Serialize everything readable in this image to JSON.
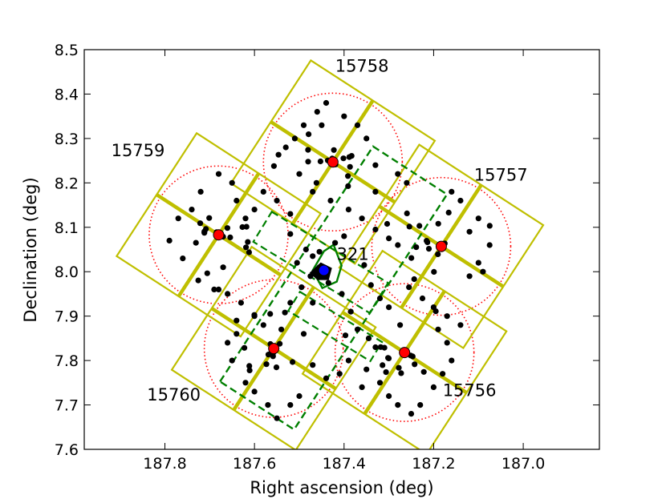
{
  "chart_data": {
    "type": "scatter",
    "xlabel": "Right ascension (deg)",
    "ylabel": "Declination (deg)",
    "xlim": [
      187.98,
      186.83
    ],
    "ylim": [
      7.6,
      8.5
    ],
    "x_ticks": [
      "187.8",
      "187.6",
      "187.4",
      "187.2",
      "187.0"
    ],
    "x_tick_values": [
      187.8,
      187.6,
      187.4,
      187.2,
      187.0
    ],
    "y_ticks": [
      "7.6",
      "7.7",
      "7.8",
      "7.9",
      "8.0",
      "8.1",
      "8.2",
      "8.3",
      "8.4",
      "8.5"
    ],
    "y_tick_values": [
      7.6,
      7.7,
      7.8,
      7.9,
      8.0,
      8.1,
      8.2,
      8.3,
      8.4,
      8.5
    ],
    "grid": false,
    "fields": [
      {
        "id": "15756",
        "center": [
          187.265,
          7.818
        ],
        "label_pos": [
          187.12,
          7.72
        ]
      },
      {
        "id": "15757",
        "center": [
          187.183,
          8.057
        ],
        "label_pos": [
          187.05,
          8.205
        ]
      },
      {
        "id": "15758",
        "center": [
          187.425,
          8.247
        ],
        "label_pos": [
          187.36,
          8.45
        ]
      },
      {
        "id": "15759",
        "center": [
          187.68,
          8.083
        ],
        "label_pos": [
          187.86,
          8.26
        ]
      },
      {
        "id": "15760",
        "center": [
          187.557,
          7.827
        ],
        "label_pos": [
          187.78,
          7.71
        ]
      }
    ],
    "fov_radius_deg": 0.155,
    "chip_half_size_deg": 0.165,
    "chip_rotation_deg": 33,
    "target": {
      "label": "321",
      "ra": 187.445,
      "dec": 8.003
    },
    "colors": {
      "points": "#000000",
      "field_centers": "#ff0000",
      "fov_circles": "#ff0000",
      "chips": "#bfbf00",
      "target_region": "#007f00",
      "target": "#0000ff"
    },
    "source_points": [
      [
        187.7255,
        7.9804
      ],
      [
        187.4791,
        8.3095
      ],
      [
        187.2138,
        8.0664
      ],
      [
        187.2434,
        7.9833
      ],
      [
        187.1952,
        7.911
      ],
      [
        187.7118,
        8.0875
      ],
      [
        187.3831,
        8.2609
      ],
      [
        187.0749,
        8.1034
      ],
      [
        187.1664,
        8.1331
      ],
      [
        187.3098,
        7.8289
      ],
      [
        187.5733,
        7.7917
      ],
      [
        187.4804,
        8.2743
      ],
      [
        187.3063,
        7.7739
      ],
      [
        187.7212,
        8.1091
      ],
      [
        187.7054,
        7.9965
      ],
      [
        187.6003,
        7.9026
      ],
      [
        187.3969,
        7.8566
      ],
      [
        187.3018,
        7.8059
      ],
      [
        187.5689,
        7.8133
      ],
      [
        187.4616,
        8.2001
      ],
      [
        187.2541,
        8.1016
      ],
      [
        187.6224,
        7.8286
      ],
      [
        187.2219,
        7.7744
      ],
      [
        187.2726,
        7.7715
      ],
      [
        187.6269,
        8.1005
      ],
      [
        187.5565,
        8.238
      ],
      [
        187.5149,
        7.7966
      ],
      [
        187.4526,
        8.2484
      ],
      [
        187.6149,
        8.0669
      ],
      [
        187.6178,
        8.1013
      ],
      [
        187.2596,
        8.1313
      ],
      [
        187.3883,
        8.2582
      ],
      [
        187.3142,
        7.7896
      ],
      [
        187.4227,
        8.274
      ],
      [
        187.2317,
        8.1032
      ],
      [
        187.6121,
        8.0436
      ],
      [
        187.7118,
        8.0904
      ],
      [
        187.6115,
        7.7877
      ],
      [
        187.6189,
        8.0549
      ],
      [
        187.2779,
        7.7836
      ],
      [
        187.5463,
        8.2633
      ],
      [
        187.4802,
        8.2478
      ],
      [
        187.1896,
        8.108
      ],
      [
        187.3002,
        7.8048
      ],
      [
        187.5547,
        7.8218
      ],
      [
        187.7011,
        8.1208
      ],
      [
        187.532,
        7.9081
      ],
      [
        187.2497,
        8.0309
      ],
      [
        187.1906,
        8.0394
      ],
      [
        187.7306,
        8.0651
      ],
      [
        187.6828,
        8.0774
      ],
      [
        187.5509,
        7.7847
      ],
      [
        187.6108,
        7.7779
      ],
      [
        187.3914,
        8.2154
      ],
      [
        187.3911,
        8.1926
      ],
      [
        187.2158,
        8.0696
      ],
      [
        187.2426,
        7.7916
      ],
      [
        187.1994,
        7.9997
      ],
      [
        187.2469,
        7.8093
      ],
      [
        187.5586,
        7.8096
      ],
      [
        187.3868,
        8.2361
      ],
      [
        187.4014,
        8.2553
      ],
      [
        187.3183,
        7.8303
      ],
      [
        187.2107,
        8.0516
      ],
      [
        187.7084,
        8.0962
      ],
      [
        187.5526,
        7.8293
      ],
      [
        187.6542,
        8.0773
      ],
      [
        187.4265,
        8.2549
      ],
      [
        187.6604,
        8.0983
      ],
      [
        187.3038,
        8.1077
      ],
      [
        187.2389,
        8.0553
      ],
      [
        187.5579,
        7.8175
      ],
      [
        187.2515,
        7.8113
      ],
      [
        187.5649,
        7.815
      ],
      [
        187.6844,
        8.0891
      ],
      [
        187.4287,
        8.2496
      ],
      [
        187.4364,
        8.2506
      ],
      [
        187.5645,
        7.8371
      ],
      [
        187.5437,
        7.8378
      ],
      [
        187.6699,
        8.0788
      ],
      [
        187.2657,
        7.8177
      ],
      [
        187.2694,
        7.8186
      ],
      [
        187.1752,
        8.0637
      ],
      [
        187.5596,
        7.8228
      ],
      [
        187.6792,
        8.0812
      ],
      [
        187.182,
        8.0505
      ],
      [
        187.4192,
        8.2415
      ],
      [
        187.1858,
        8.0531
      ],
      [
        187.2663,
        7.8207
      ],
      [
        187.4248,
        8.2505
      ],
      [
        187.6803,
        8.0797
      ],
      [
        187.5573,
        7.8285
      ],
      [
        187.1829,
        8.0585
      ],
      [
        187.4268,
        8.2494
      ],
      [
        187.6798,
        8.0834
      ],
      [
        187.2636,
        7.8168
      ],
      [
        187.18,
        8.062
      ],
      [
        187.4275,
        8.2428
      ],
      [
        187.6826,
        8.0839
      ],
      [
        187.5562,
        7.8249
      ],
      [
        187.565,
        7.905
      ],
      [
        187.52,
        7.93
      ],
      [
        187.495,
        7.965
      ],
      [
        187.475,
        7.99
      ],
      [
        187.455,
        8.01
      ],
      [
        187.435,
        7.975
      ],
      [
        187.405,
        7.95
      ],
      [
        187.385,
        7.91
      ],
      [
        187.37,
        7.87
      ],
      [
        187.345,
        7.85
      ],
      [
        187.33,
        7.83
      ],
      [
        187.505,
        8.02
      ],
      [
        187.485,
        8.05
      ],
      [
        187.52,
        8.085
      ],
      [
        187.47,
        8.035
      ],
      [
        187.58,
        7.88
      ],
      [
        187.54,
        7.87
      ],
      [
        187.49,
        7.86
      ],
      [
        187.47,
        7.93
      ],
      [
        187.455,
        8.045
      ],
      [
        187.42,
        8.065
      ],
      [
        187.4,
        8.08
      ],
      [
        187.355,
        8.015
      ],
      [
        187.34,
        7.97
      ],
      [
        187.32,
        7.94
      ],
      [
        187.3,
        7.92
      ],
      [
        187.275,
        7.88
      ],
      [
        187.36,
        8.12
      ],
      [
        187.33,
        8.095
      ],
      [
        187.3,
        8.075
      ],
      [
        187.28,
        8.06
      ],
      [
        187.52,
        8.13
      ],
      [
        187.55,
        8.16
      ],
      [
        187.58,
        8.18
      ],
      [
        187.6,
        8.14
      ],
      [
        187.62,
        8.12
      ],
      [
        187.39,
        7.8
      ],
      [
        187.41,
        7.77
      ],
      [
        187.44,
        7.76
      ],
      [
        187.47,
        7.79
      ],
      [
        187.6,
        7.9
      ],
      [
        187.63,
        7.93
      ],
      [
        187.66,
        7.95
      ],
      [
        187.68,
        7.96
      ],
      [
        187.64,
        7.86
      ],
      [
        187.255,
        7.965
      ],
      [
        187.225,
        7.94
      ],
      [
        187.2,
        7.92
      ],
      [
        187.17,
        7.9
      ],
      [
        187.14,
        7.88
      ],
      [
        187.12,
        7.99
      ],
      [
        187.1,
        8.02
      ],
      [
        187.12,
        8.09
      ],
      [
        187.14,
        8.16
      ],
      [
        187.16,
        8.18
      ],
      [
        187.1,
        8.12
      ],
      [
        187.075,
        8.06
      ],
      [
        187.09,
        8.0
      ],
      [
        187.26,
        8.2
      ],
      [
        187.28,
        8.22
      ],
      [
        187.33,
        8.24
      ],
      [
        187.35,
        8.3
      ],
      [
        187.37,
        8.33
      ],
      [
        187.4,
        8.35
      ],
      [
        187.44,
        8.38
      ],
      [
        187.46,
        8.36
      ],
      [
        187.49,
        8.33
      ],
      [
        187.51,
        8.3
      ],
      [
        187.53,
        8.28
      ],
      [
        187.45,
        8.33
      ],
      [
        187.5,
        8.22
      ],
      [
        187.47,
        8.18
      ],
      [
        187.43,
        8.16
      ],
      [
        187.39,
        8.14
      ],
      [
        187.33,
        8.18
      ],
      [
        187.77,
        8.12
      ],
      [
        187.79,
        8.07
      ],
      [
        187.76,
        8.03
      ],
      [
        187.74,
        8.14
      ],
      [
        187.72,
        8.18
      ],
      [
        187.68,
        8.22
      ],
      [
        187.65,
        8.2
      ],
      [
        187.64,
        8.16
      ],
      [
        187.67,
        8.01
      ],
      [
        187.69,
        7.96
      ],
      [
        187.5,
        7.72
      ],
      [
        187.52,
        7.7
      ],
      [
        187.55,
        7.67
      ],
      [
        187.57,
        7.7
      ],
      [
        187.6,
        7.73
      ],
      [
        187.62,
        7.75
      ],
      [
        187.65,
        7.8
      ],
      [
        187.66,
        7.84
      ],
      [
        187.64,
        7.89
      ],
      [
        187.23,
        7.7
      ],
      [
        187.25,
        7.68
      ],
      [
        187.28,
        7.7
      ],
      [
        187.3,
        7.72
      ],
      [
        187.32,
        7.75
      ],
      [
        187.2,
        7.74
      ],
      [
        187.18,
        7.77
      ],
      [
        187.16,
        7.8
      ],
      [
        187.17,
        7.84
      ],
      [
        187.19,
        7.87
      ],
      [
        187.36,
        7.74
      ],
      [
        187.35,
        7.78
      ]
    ]
  }
}
